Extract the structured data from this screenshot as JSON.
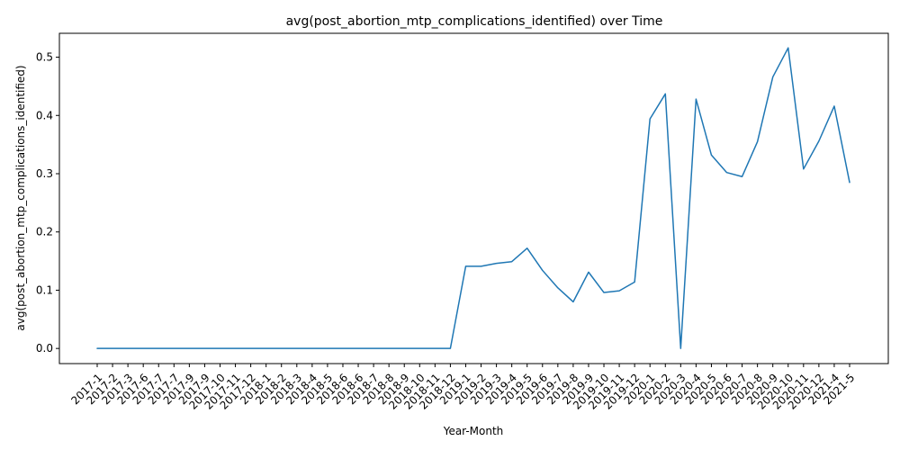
{
  "chart_data": {
    "type": "line",
    "title": "avg(post_abortion_mtp_complications_identified) over Time",
    "xlabel": "Year-Month",
    "ylabel": "avg(post_abortion_mtp_complications_identified)",
    "ylim": [
      -0.026,
      0.541
    ],
    "yticks": [
      0.0,
      0.1,
      0.2,
      0.3,
      0.4,
      0.5
    ],
    "grid": false,
    "legend": "none",
    "colors": {
      "line": "#1f77b4"
    },
    "categories": [
      "2017-1",
      "2017-2",
      "2017-3",
      "2017-6",
      "2017-7",
      "2017-7",
      "2017-9",
      "2017-9",
      "2017-10",
      "2017-11",
      "2017-12",
      "2018-1",
      "2018-2",
      "2018-3",
      "2018-4",
      "2018-5",
      "2018-6",
      "2018-6",
      "2018-7",
      "2018-8",
      "2018-9",
      "2018-10",
      "2018-11",
      "2018-12",
      "2019-1",
      "2019-2",
      "2019-3",
      "2019-4",
      "2019-5",
      "2019-6",
      "2019-7",
      "2019-8",
      "2019-9",
      "2019-10",
      "2019-11",
      "2019-12",
      "2020-1",
      "2020-2",
      "2020-3",
      "2020-4",
      "2020-5",
      "2020-6",
      "2020-7",
      "2020-8",
      "2020-9",
      "2020-10",
      "2020-11",
      "2020-12",
      "2021-4",
      "2021-5"
    ],
    "values": [
      0,
      0,
      0,
      0,
      0,
      0,
      0,
      0,
      0,
      0,
      0,
      0,
      0,
      0,
      0,
      0,
      0,
      0,
      0,
      0,
      0,
      0,
      0,
      0,
      0.141,
      0.141,
      0.146,
      0.149,
      0.172,
      0.134,
      0.104,
      0.08,
      0.131,
      0.096,
      0.099,
      0.114,
      0.394,
      0.437,
      0.0,
      0.428,
      0.332,
      0.302,
      0.295,
      0.355,
      0.466,
      0.516,
      0.308,
      0.356,
      0.416,
      0.285
    ]
  }
}
